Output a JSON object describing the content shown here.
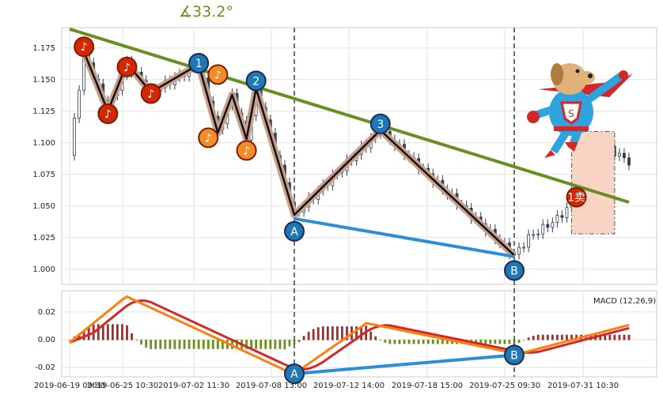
{
  "angle_label": "∡33.2°",
  "macd_label": "MACD (12,26,9)",
  "colors": {
    "trendline": "#6b8e23",
    "divergence": "#2a8fd6",
    "zigzag_outer": "#c8a08c",
    "macd_line": "#ff7f0e",
    "signal_line": "#d62728",
    "hist_pos": "#a52a2a",
    "hist_neg": "#6b8e23",
    "marker_blue": "#1f77b4",
    "marker_red": "#d62800",
    "marker_orange": "#f28c28",
    "candle": "#2f3e55",
    "sell_box": "#f9d4c4"
  },
  "icons": [
    "music-note-icon",
    "superhero-dog-icon"
  ],
  "chart_data": [
    {
      "type": "candlestick",
      "x_ticks": [
        "2019-06-19 09:30",
        "2019-06-25 10:30",
        "2019-07-02 11:30",
        "2019-07-08 13:00",
        "2019-07-12 14:00",
        "2019-07-18 15:00",
        "2019-07-25 09:30",
        "2019-07-31 10:30"
      ],
      "y_ticks": [
        "1.000",
        "1.025",
        "1.050",
        "1.075",
        "1.100",
        "1.125",
        "1.150",
        "1.175"
      ],
      "ylim": [
        0.993,
        1.188
      ],
      "n_bars": 118,
      "trendline": {
        "start": [
          0,
          1.19
        ],
        "end": [
          117,
          1.053
        ]
      },
      "zigzag_points": [
        {
          "i": 3,
          "v": 1.172
        },
        {
          "i": 8,
          "v": 1.125
        },
        {
          "i": 12,
          "v": 1.163
        },
        {
          "i": 17,
          "v": 1.14
        },
        {
          "i": 27,
          "v": 1.162
        },
        {
          "i": 31,
          "v": 1.108
        },
        {
          "i": 34,
          "v": 1.138
        },
        {
          "i": 37,
          "v": 1.103
        },
        {
          "i": 39,
          "v": 1.143
        },
        {
          "i": 47,
          "v": 1.043
        },
        {
          "i": 65,
          "v": 1.11
        },
        {
          "i": 93,
          "v": 1.011
        }
      ],
      "divergence_line": {
        "from": [
          47,
          1.04
        ],
        "to": [
          93,
          1.01
        ]
      },
      "markers": [
        {
          "label": "1",
          "i": 27,
          "v": 1.163,
          "style": "blue"
        },
        {
          "label": "2",
          "i": 39,
          "v": 1.149,
          "style": "blue"
        },
        {
          "label": "3",
          "i": 65,
          "v": 1.115,
          "style": "blue"
        },
        {
          "label": "A",
          "i": 47,
          "v": 1.03,
          "style": "blue"
        },
        {
          "label": "B",
          "i": 93,
          "v": 0.999,
          "style": "blue"
        },
        {
          "label": "",
          "i": 3,
          "v": 1.176,
          "style": "red"
        },
        {
          "label": "",
          "i": 8,
          "v": 1.123,
          "style": "red"
        },
        {
          "label": "",
          "i": 12,
          "v": 1.16,
          "style": "red"
        },
        {
          "label": "",
          "i": 17,
          "v": 1.139,
          "style": "red"
        },
        {
          "label": "",
          "i": 31,
          "v": 1.154,
          "style": "orange"
        },
        {
          "label": "",
          "i": 29,
          "v": 1.104,
          "style": "orange"
        },
        {
          "label": "",
          "i": 37,
          "v": 1.094,
          "style": "orange"
        },
        {
          "label": "1卖",
          "i": 106,
          "v": 1.057,
          "style": "red"
        }
      ],
      "vlines_at": [
        47,
        93
      ],
      "sell_box": {
        "i0": 105,
        "i1": 114,
        "v0": 1.028,
        "v1": 1.109
      }
    },
    {
      "type": "macd",
      "title": "MACD (12,26,9)",
      "y_ticks": [
        "0.02",
        "0.00",
        "-0.02"
      ],
      "ylim": [
        -0.025,
        0.033
      ],
      "divergence_line": {
        "from": [
          47,
          -0.0245
        ],
        "to": [
          93,
          -0.011
        ]
      },
      "markers": [
        {
          "label": "A",
          "i": 47,
          "v": -0.0245
        },
        {
          "label": "B",
          "i": 93,
          "v": -0.011
        }
      ]
    }
  ]
}
